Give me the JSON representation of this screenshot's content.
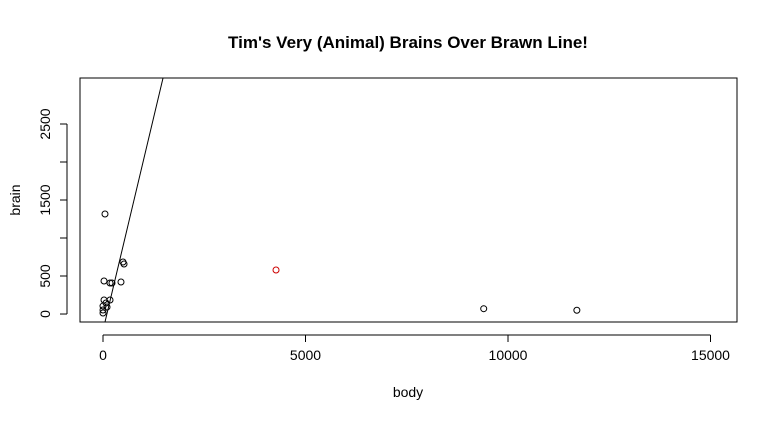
{
  "chart_data": {
    "type": "scatter",
    "title": "Tim's Very (Animal) Brains Over Brawn Line!",
    "x_label": "body",
    "y_label": "brain",
    "series": [
      {
        "color": "#000000",
        "x": [
          49,
          25,
          173,
          222,
          494,
          519,
          444,
          173,
          25,
          74,
          0,
          0,
          0,
          99,
          9400,
          11700
        ],
        "values": [
          1316,
          434,
          408,
          408,
          684,
          658,
          421,
          184,
          184,
          145,
          105,
          53,
          13,
          92,
          70,
          50
        ]
      },
      {
        "color": "#cc0000",
        "x": [
          4272
        ],
        "values": [
          579
        ]
      }
    ],
    "abline": {
      "intercept": -215,
      "slope": 2.24,
      "color": "#000000"
    },
    "xlim": [
      -568,
      15654
    ],
    "xticks": [
      0,
      5000,
      10000,
      15000
    ],
    "ylim": [
      -105,
      3105
    ],
    "yticks": [
      0,
      500,
      1500,
      2500
    ],
    "minor_yticks": [
      1000,
      2000
    ]
  }
}
